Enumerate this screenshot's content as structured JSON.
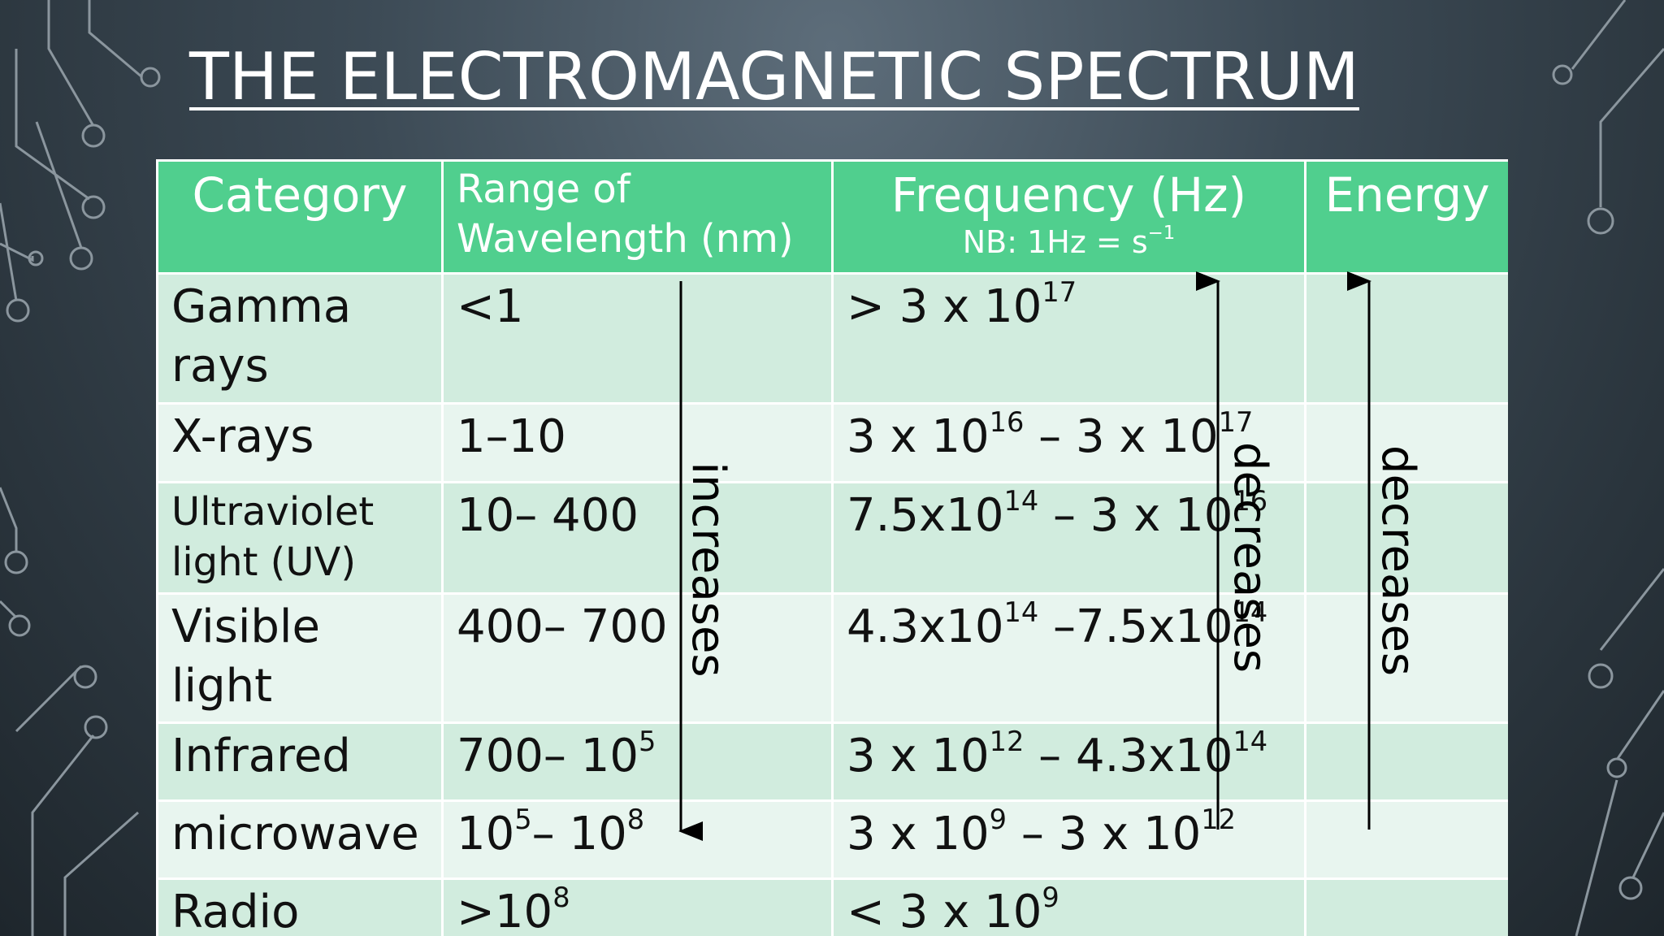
{
  "title": "THE ELECTROMAGNETIC SPECTRUM",
  "table": {
    "header": [
      "Category",
      "Range of Wavelength (nm)",
      {
        "text": "Frequency (Hz)",
        "note": [
          "NB: 1Hz = s",
          {
            "sup": "−1"
          }
        ]
      },
      "Energy"
    ],
    "rows": [
      [
        "Gamma rays",
        [
          "<1"
        ],
        [
          "> 3 x 10",
          {
            "sup": "17"
          }
        ]
      ],
      [
        "X-rays",
        [
          "1–10"
        ],
        [
          "3 x 10",
          {
            "sup": "16"
          },
          " – 3 x 10",
          {
            "sup": "17"
          }
        ]
      ],
      [
        "Ultraviolet light (UV)",
        [
          "10– 400"
        ],
        [
          "7.5x10",
          {
            "sup": "14"
          },
          " – 3 x 10",
          {
            "sup": "16"
          }
        ]
      ],
      [
        "Visible light",
        [
          "400– 700"
        ],
        [
          "4.3x10",
          {
            "sup": "14"
          },
          " –7.5x10",
          {
            "sup": "14"
          }
        ]
      ],
      [
        "Infrared",
        [
          "700– 10",
          {
            "sup": "5"
          }
        ],
        [
          "3 x 10",
          {
            "sup": "12"
          },
          " – 4.3x10",
          {
            "sup": "14"
          }
        ]
      ],
      [
        "microwave",
        [
          "10",
          {
            "sup": "5"
          },
          "– 10",
          {
            "sup": "8"
          }
        ],
        [
          "3 x 10",
          {
            "sup": "9"
          },
          " – 3 x 10",
          {
            "sup": "12"
          }
        ]
      ],
      [
        "Radio",
        [
          ">10",
          {
            "sup": "8"
          }
        ],
        [
          "< 3 x 10",
          {
            "sup": "9"
          }
        ]
      ]
    ]
  },
  "annotations": [
    "increases",
    "decreases",
    "decreases"
  ]
}
